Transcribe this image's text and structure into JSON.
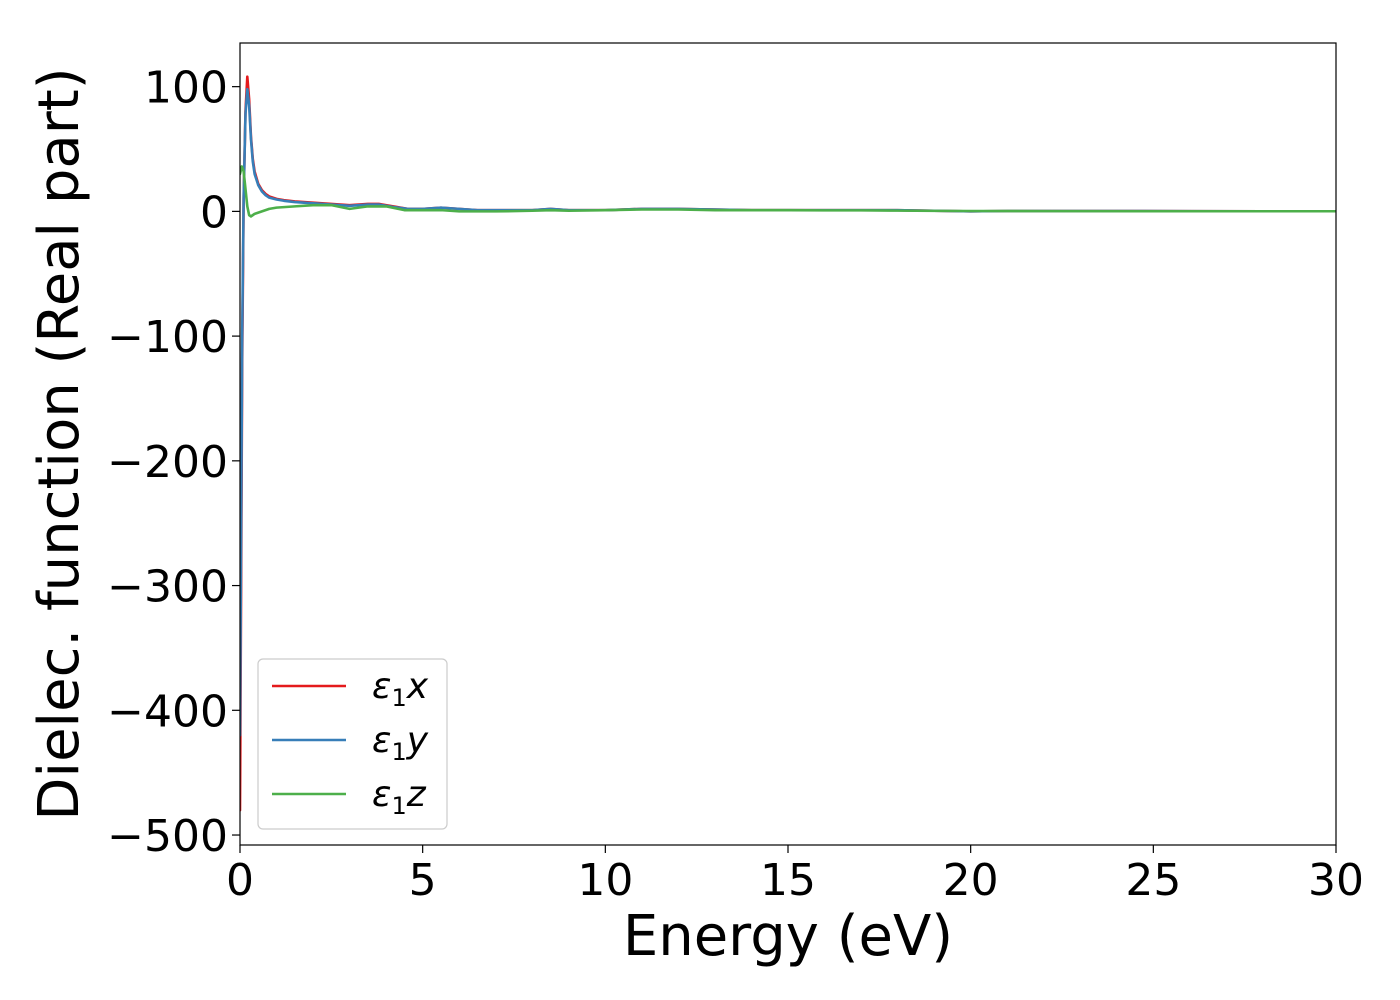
{
  "chart_data": {
    "type": "line",
    "title": "",
    "xlabel": "Energy (eV)",
    "ylabel": "Dielec. function (Real part)",
    "xlim": [
      0,
      30
    ],
    "ylim": [
      -508,
      135
    ],
    "xticks": [
      0,
      5,
      10,
      15,
      20,
      25,
      30
    ],
    "xtick_labels": [
      "0",
      "5",
      "10",
      "15",
      "20",
      "25",
      "30"
    ],
    "yticks": [
      100,
      0,
      -100,
      -200,
      -300,
      -400,
      -500
    ],
    "ytick_labels": [
      "100",
      "0",
      "−100",
      "−200",
      "−300",
      "−400",
      "−500"
    ],
    "grid": false,
    "legend_position": "lower-left",
    "series": [
      {
        "name": "ε₁x",
        "name_parts": {
          "symbol": "ε",
          "sub": "1",
          "var": "x"
        },
        "color": "#e41a1c",
        "x": [
          0.0,
          0.03,
          0.06,
          0.1,
          0.15,
          0.2,
          0.25,
          0.3,
          0.35,
          0.4,
          0.5,
          0.6,
          0.7,
          0.8,
          1.0,
          1.2,
          1.5,
          2.0,
          2.5,
          3.0,
          3.5,
          3.8,
          4.2,
          4.6,
          5.0,
          5.5,
          6.0,
          6.5,
          7.0,
          8.0,
          8.5,
          9.0,
          9.5,
          10.0,
          11.0,
          12.0,
          13.0,
          14.0,
          15.0,
          16.0,
          17.0,
          18.0,
          19.0,
          20.0,
          21.0,
          22.0,
          24.0,
          26.0,
          28.0,
          30.0
        ],
        "y": [
          -480,
          -300,
          -120,
          10,
          80,
          108,
          90,
          60,
          42,
          32,
          22,
          17,
          14,
          12,
          10,
          9,
          8,
          7,
          6,
          5,
          6,
          6,
          4,
          2,
          2,
          3,
          2,
          1,
          1,
          1,
          2,
          1,
          1,
          1,
          2,
          2,
          1.5,
          1,
          1,
          1,
          1,
          1,
          0.5,
          0,
          0.3,
          0.3,
          0.3,
          0.2,
          0.1,
          0.1
        ]
      },
      {
        "name": "ε₁y",
        "name_parts": {
          "symbol": "ε",
          "sub": "1",
          "var": "y"
        },
        "color": "#377eb8",
        "x": [
          0.0,
          0.03,
          0.06,
          0.1,
          0.15,
          0.2,
          0.25,
          0.3,
          0.35,
          0.4,
          0.5,
          0.6,
          0.7,
          0.8,
          1.0,
          1.2,
          1.5,
          2.0,
          2.5,
          3.0,
          3.5,
          3.8,
          4.2,
          4.6,
          5.0,
          5.5,
          6.0,
          6.5,
          7.0,
          8.0,
          8.5,
          9.0,
          9.5,
          10.0,
          11.0,
          12.0,
          13.0,
          14.0,
          15.0,
          16.0,
          17.0,
          18.0,
          19.0,
          20.0,
          21.0,
          22.0,
          24.0,
          26.0,
          28.0,
          30.0
        ],
        "y": [
          -420,
          -260,
          -100,
          12,
          78,
          98,
          85,
          58,
          40,
          30,
          21,
          16,
          13,
          11,
          9.5,
          8.5,
          7.5,
          6.5,
          5.5,
          4.5,
          5.5,
          5.5,
          3.5,
          2,
          2,
          3,
          2,
          1,
          1,
          1,
          2,
          1,
          1,
          1,
          2,
          2,
          1.5,
          1,
          1,
          1,
          1,
          1,
          0.5,
          0,
          0.3,
          0.3,
          0.3,
          0.2,
          0.1,
          0.1
        ]
      },
      {
        "name": "ε₁z",
        "name_parts": {
          "symbol": "ε",
          "sub": "1",
          "var": "z"
        },
        "color": "#4daf4a",
        "x": [
          0.0,
          0.05,
          0.1,
          0.15,
          0.2,
          0.25,
          0.3,
          0.35,
          0.4,
          0.5,
          0.6,
          0.8,
          1.0,
          1.5,
          2.0,
          2.5,
          3.0,
          3.5,
          4.0,
          4.5,
          5.0,
          5.5,
          6.0,
          6.5,
          7.0,
          8.0,
          8.5,
          9.0,
          10.0,
          11.0,
          12.0,
          13.0,
          14.0,
          15.0,
          16.0,
          17.0,
          18.0,
          19.0,
          20.0,
          22.0,
          25.0,
          28.0,
          30.0
        ],
        "y": [
          30,
          36,
          32,
          18,
          4,
          -3,
          -4,
          -3,
          -2,
          -1,
          0,
          2,
          3,
          4,
          5,
          5,
          2,
          4,
          4,
          1,
          1,
          1,
          0,
          0,
          0,
          0.5,
          1,
          0.5,
          1,
          1.5,
          1.5,
          1,
          1,
          1,
          0.8,
          0.8,
          0.6,
          0.4,
          0.3,
          0.2,
          0.1,
          0.1,
          0.1
        ]
      }
    ]
  }
}
